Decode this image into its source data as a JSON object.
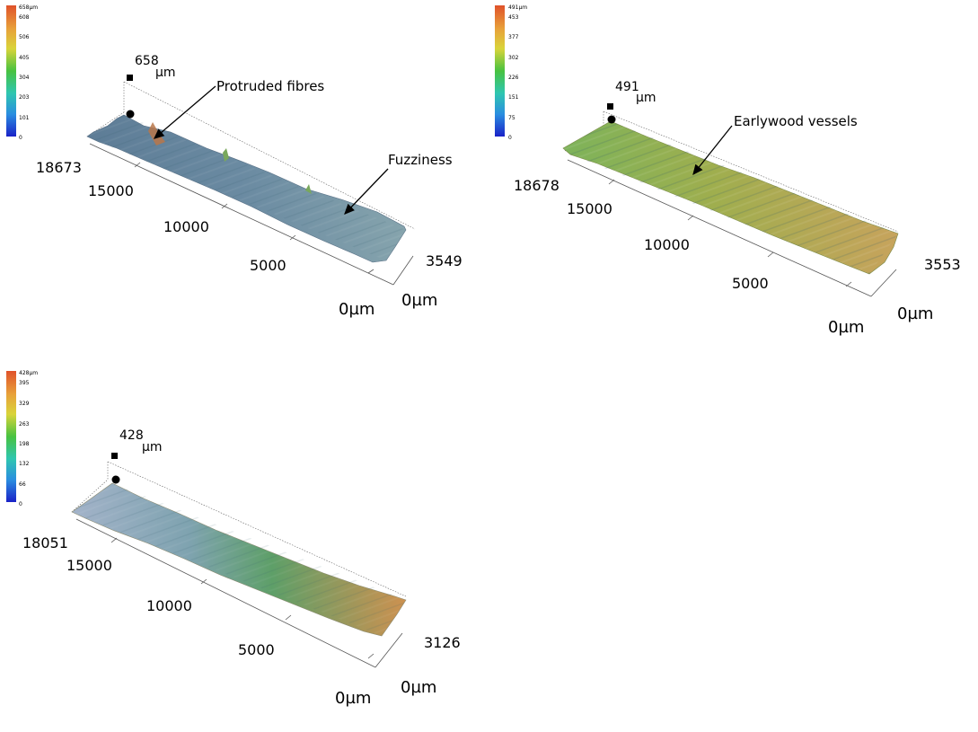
{
  "panels": [
    {
      "id": "a",
      "scale": {
        "top_label": "658µm",
        "ticks": [
          "608",
          "506",
          "405",
          "304",
          "203",
          "101",
          "0"
        ]
      },
      "axis": {
        "z_value": "658",
        "z_unit": "µm",
        "y_ticks": [
          "18673",
          "15000",
          "10000",
          "5000",
          "0µm"
        ],
        "x_ticks": [
          "3549",
          "0µm"
        ]
      },
      "annotations": [
        "Protruded fibres",
        "Fuzziness"
      ],
      "colors": {
        "surface_start": "#5f7f98",
        "surface_mid": "#6f8da2",
        "surface_end": "#7f9fa8"
      }
    },
    {
      "id": "b",
      "scale": {
        "top_label": "491µm",
        "ticks": [
          "453",
          "377",
          "302",
          "226",
          "151",
          "75",
          "0"
        ]
      },
      "axis": {
        "z_value": "491",
        "z_unit": "µm",
        "y_ticks": [
          "18678",
          "15000",
          "10000",
          "5000",
          "0µm"
        ],
        "x_ticks": [
          "3553",
          "0µm"
        ]
      },
      "annotations": [
        "Earlywood vessels"
      ],
      "colors": {
        "surface_start": "#7fae5a",
        "surface_mid": "#a7a84f",
        "surface_end": "#c9a45a"
      }
    },
    {
      "id": "c",
      "scale": {
        "top_label": "428µm",
        "ticks": [
          "395",
          "329",
          "263",
          "198",
          "132",
          "66",
          "0"
        ]
      },
      "axis": {
        "z_value": "428",
        "z_unit": "µm",
        "y_ticks": [
          "18051",
          "15000",
          "10000",
          "5000",
          "0µm"
        ],
        "x_ticks": [
          "3126",
          "0µm"
        ]
      },
      "annotations": [],
      "colors": {
        "surface_start": "#9eb0c6",
        "surface_mid": "#5fa16a",
        "surface_end": "#c9924e"
      }
    }
  ]
}
